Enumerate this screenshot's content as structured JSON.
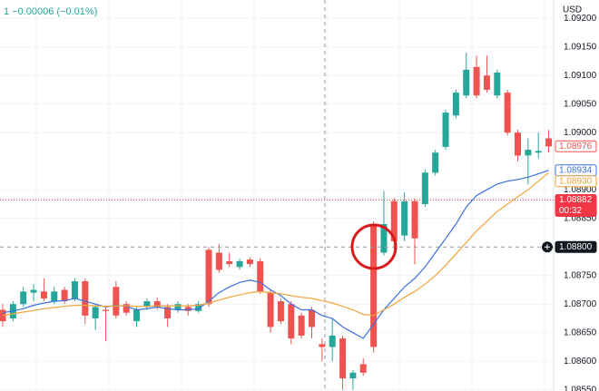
{
  "chart_data": {
    "type": "candlestick",
    "header_text": "1  −0.00006 (−0.01%)",
    "y_axis_label": "USD",
    "up_color": "#26a69a",
    "down_color": "#ef5350",
    "candles": {
      "open": [
        1.0869,
        1.08675,
        1.087,
        1.0872,
        1.08722,
        1.08705,
        1.08725,
        1.0871,
        1.0874,
        1.08675,
        1.0869,
        1.0873,
        1.087,
        1.0867,
        1.08695,
        1.08705,
        1.08695,
        1.0869,
        1.08695,
        1.08688,
        1.08795,
        1.0879,
        1.08775,
        1.08765,
        1.08778,
        1.08775,
        1.0872,
        1.08705,
        1.087,
        1.0868,
        1.0869,
        1.0863,
        1.08625,
        1.0864,
        1.0857,
        1.08595,
        1.0884,
        1.0879,
        1.0888,
        1.0882,
        1.0888,
        1.08875,
        1.0893,
        1.08975,
        1.0903,
        1.09065,
        1.09115,
        1.091,
        1.09065,
        1.0907,
        1.09,
        1.0896,
        1.08965,
        1.0899
      ],
      "high": [
        1.087,
        1.08705,
        1.0873,
        1.08735,
        1.08745,
        1.0873,
        1.0873,
        1.08745,
        1.08745,
        1.087,
        1.08695,
        1.0874,
        1.08705,
        1.08695,
        1.0871,
        1.08712,
        1.087,
        1.08705,
        1.087,
        1.08705,
        1.088,
        1.08805,
        1.0879,
        1.0878,
        1.08782,
        1.0878,
        1.08725,
        1.0871,
        1.08705,
        1.08685,
        1.08695,
        1.0864,
        1.08675,
        1.08645,
        1.08585,
        1.08605,
        1.08845,
        1.08898,
        1.08885,
        1.08895,
        1.08885,
        1.08935,
        1.0897,
        1.0904,
        1.09075,
        1.0914,
        1.09135,
        1.09135,
        1.0911,
        1.09075,
        1.09005,
        1.0899,
        1.09,
        1.09005
      ],
      "low": [
        1.0866,
        1.0867,
        1.08695,
        1.08705,
        1.08705,
        1.087,
        1.087,
        1.08705,
        1.08665,
        1.08655,
        1.08635,
        1.08675,
        1.0868,
        1.0866,
        1.0869,
        1.0869,
        1.0866,
        1.08685,
        1.0868,
        1.08685,
        1.08695,
        1.08755,
        1.08765,
        1.0876,
        1.08765,
        1.08718,
        1.0865,
        1.08665,
        1.0863,
        1.0864,
        1.0864,
        1.086,
        1.086,
        1.0855,
        1.0855,
        1.08575,
        1.08615,
        1.08785,
        1.08795,
        1.0881,
        1.0877,
        1.0887,
        1.08925,
        1.0897,
        1.09025,
        1.0906,
        1.0906,
        1.0907,
        1.0906,
        1.08995,
        1.0895,
        1.0891,
        1.08955,
        1.08965
      ],
      "close": [
        1.0867,
        1.087,
        1.08722,
        1.08725,
        1.0871,
        1.08722,
        1.08705,
        1.0874,
        1.0868,
        1.08695,
        1.08688,
        1.0868,
        1.08685,
        1.0869,
        1.08705,
        1.08695,
        1.08675,
        1.087,
        1.08688,
        1.087,
        1.087,
        1.0876,
        1.0877,
        1.08775,
        1.0877,
        1.08722,
        1.0866,
        1.0867,
        1.0864,
        1.08645,
        1.0866,
        1.08625,
        1.08645,
        1.0857,
        1.0858,
        1.0858,
        1.08625,
        1.0884,
        1.0881,
        1.0888,
        1.08815,
        1.0893,
        1.08965,
        1.09035,
        1.0907,
        1.0911,
        1.09065,
        1.09075,
        1.09105,
        1.09,
        1.0896,
        1.0897,
        1.08968,
        1.08976
      ]
    },
    "lines": [
      {
        "color": "#3b6fe0",
        "values": [
          1.08685,
          1.08688,
          1.08692,
          1.08698,
          1.08702,
          1.08705,
          1.08706,
          1.0871,
          1.08705,
          1.087,
          1.08695,
          1.08698,
          1.08696,
          1.0869,
          1.08692,
          1.08695,
          1.08692,
          1.0869,
          1.0869,
          1.08692,
          1.08705,
          1.0872,
          1.0873,
          1.08738,
          1.08742,
          1.08738,
          1.08725,
          1.08715,
          1.087,
          1.0869,
          1.0869,
          1.0868,
          1.08675,
          1.0866,
          1.0865,
          1.0864,
          1.08665,
          1.0869,
          1.0871,
          1.0873,
          1.08745,
          1.08765,
          1.0879,
          1.08815,
          1.0884,
          1.0887,
          1.0889,
          1.089,
          1.0891,
          1.08915,
          1.08918,
          1.08922,
          1.08928,
          1.08934
        ]
      },
      {
        "color": "#f2a33a",
        "values": [
          1.0868,
          1.08683,
          1.08686,
          1.08689,
          1.08692,
          1.08694,
          1.08696,
          1.08698,
          1.08698,
          1.08697,
          1.08696,
          1.08697,
          1.08697,
          1.08696,
          1.08696,
          1.08697,
          1.08697,
          1.08697,
          1.08697,
          1.08698,
          1.08702,
          1.08707,
          1.08712,
          1.08716,
          1.0872,
          1.08722,
          1.0872,
          1.08718,
          1.08715,
          1.08712,
          1.0871,
          1.08706,
          1.08702,
          1.08696,
          1.0869,
          1.08682,
          1.0868,
          1.0869,
          1.087,
          1.08712,
          1.08722,
          1.08735,
          1.0875,
          1.08768,
          1.08788,
          1.08808,
          1.08828,
          1.08845,
          1.08862,
          1.08875,
          1.08888,
          1.089,
          1.08915,
          1.0893
        ]
      }
    ],
    "ylim": [
      1.08548,
      1.09232
    ],
    "yticks": [
      {
        "value": 1.092,
        "label": "1.09200"
      },
      {
        "value": 1.0915,
        "label": "1.09150"
      },
      {
        "value": 1.091,
        "label": "1.09100"
      },
      {
        "value": 1.0905,
        "label": "1.09050"
      },
      {
        "value": 1.09,
        "label": "1.09000"
      },
      {
        "value": 1.089,
        "label": "1.08900"
      },
      {
        "value": 1.0885,
        "label": "1.08850"
      },
      {
        "value": 1.0875,
        "label": "1.08750"
      },
      {
        "value": 1.087,
        "label": "1.08700"
      },
      {
        "value": 1.0865,
        "label": "1.08650"
      },
      {
        "value": 1.086,
        "label": "1.08600"
      },
      {
        "value": 1.0855,
        "label": "1.08550"
      }
    ],
    "grid": true,
    "price_tags": [
      {
        "value": 1.08976,
        "label": "1.08976",
        "color": "#ef5350",
        "filled": false
      },
      {
        "value": 1.08934,
        "label": "1.08934",
        "color": "#3b6fe0",
        "filled": false
      },
      {
        "value": 1.0893,
        "label": "1.08930",
        "color": "#f2a33a",
        "filled": false
      },
      {
        "value": 1.08882,
        "label": "1.08882",
        "color": "#f23645",
        "filled": true,
        "countdown": "00:32"
      },
      {
        "value": 1.088,
        "label": "1.08800",
        "color": "#131722",
        "filled": true
      }
    ]
  }
}
